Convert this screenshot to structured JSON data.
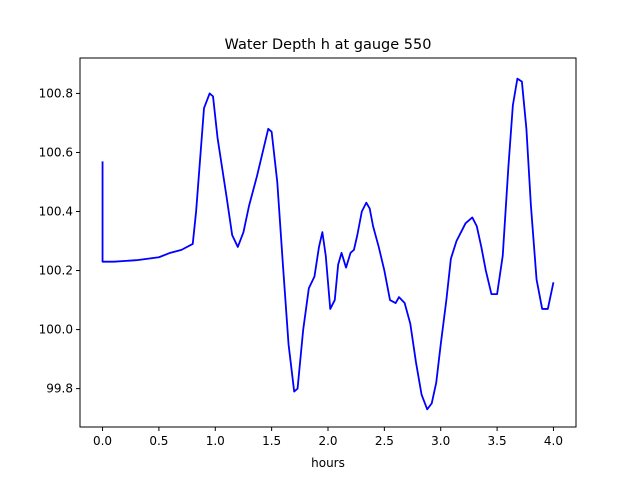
{
  "chart_data": {
    "type": "line",
    "title": "Water Depth h at gauge 550",
    "xlabel": "hours",
    "ylabel": "",
    "xlim": [
      -0.2,
      4.2
    ],
    "ylim": [
      99.67,
      100.92
    ],
    "xticks": [
      0.0,
      0.5,
      1.0,
      1.5,
      2.0,
      2.5,
      3.0,
      3.5,
      4.0
    ],
    "xtick_labels": [
      "0.0",
      "0.5",
      "1.0",
      "1.5",
      "2.0",
      "2.5",
      "3.0",
      "3.5",
      "4.0"
    ],
    "yticks": [
      99.8,
      100.0,
      100.2,
      100.4,
      100.6,
      100.8
    ],
    "ytick_labels": [
      "99.8",
      "100.0",
      "100.2",
      "100.4",
      "100.6",
      "100.8"
    ],
    "grid": false,
    "color": "#0000ff",
    "series": [
      {
        "x": [
          0.0,
          0.0,
          0.005,
          0.1,
          0.3,
          0.5,
          0.6,
          0.7,
          0.8,
          0.83,
          0.87,
          0.9,
          0.95,
          0.98,
          1.02,
          1.1,
          1.15,
          1.2,
          1.25,
          1.3,
          1.37,
          1.42,
          1.47,
          1.5,
          1.55,
          1.6,
          1.65,
          1.7,
          1.73,
          1.78,
          1.83,
          1.88,
          1.92,
          1.95,
          1.98,
          2.02,
          2.06,
          2.09,
          2.12,
          2.16,
          2.2,
          2.23,
          2.26,
          2.3,
          2.34,
          2.37,
          2.4,
          2.45,
          2.5,
          2.55,
          2.6,
          2.63,
          2.68,
          2.73,
          2.78,
          2.83,
          2.88,
          2.92,
          2.96,
          3.0,
          3.05,
          3.09,
          3.14,
          3.18,
          3.22,
          3.28,
          3.32,
          3.36,
          3.4,
          3.45,
          3.5,
          3.55,
          3.6,
          3.64,
          3.68,
          3.72,
          3.76,
          3.8,
          3.85,
          3.9,
          3.95,
          4.0
        ],
        "y": [
          100.57,
          100.23,
          100.23,
          100.23,
          100.235,
          100.245,
          100.26,
          100.27,
          100.29,
          100.4,
          100.6,
          100.75,
          100.8,
          100.79,
          100.65,
          100.45,
          100.32,
          100.28,
          100.33,
          100.42,
          100.52,
          100.6,
          100.68,
          100.67,
          100.5,
          100.22,
          99.95,
          99.79,
          99.8,
          100.0,
          100.14,
          100.18,
          100.28,
          100.33,
          100.25,
          100.07,
          100.1,
          100.22,
          100.26,
          100.21,
          100.26,
          100.27,
          100.32,
          100.4,
          100.43,
          100.41,
          100.35,
          100.28,
          100.2,
          100.1,
          100.09,
          100.11,
          100.09,
          100.02,
          99.89,
          99.78,
          99.73,
          99.75,
          99.82,
          99.95,
          100.1,
          100.24,
          100.3,
          100.33,
          100.36,
          100.38,
          100.35,
          100.28,
          100.2,
          100.12,
          100.12,
          100.25,
          100.55,
          100.76,
          100.85,
          100.84,
          100.68,
          100.42,
          100.17,
          100.07,
          100.07,
          100.16
        ]
      }
    ]
  }
}
